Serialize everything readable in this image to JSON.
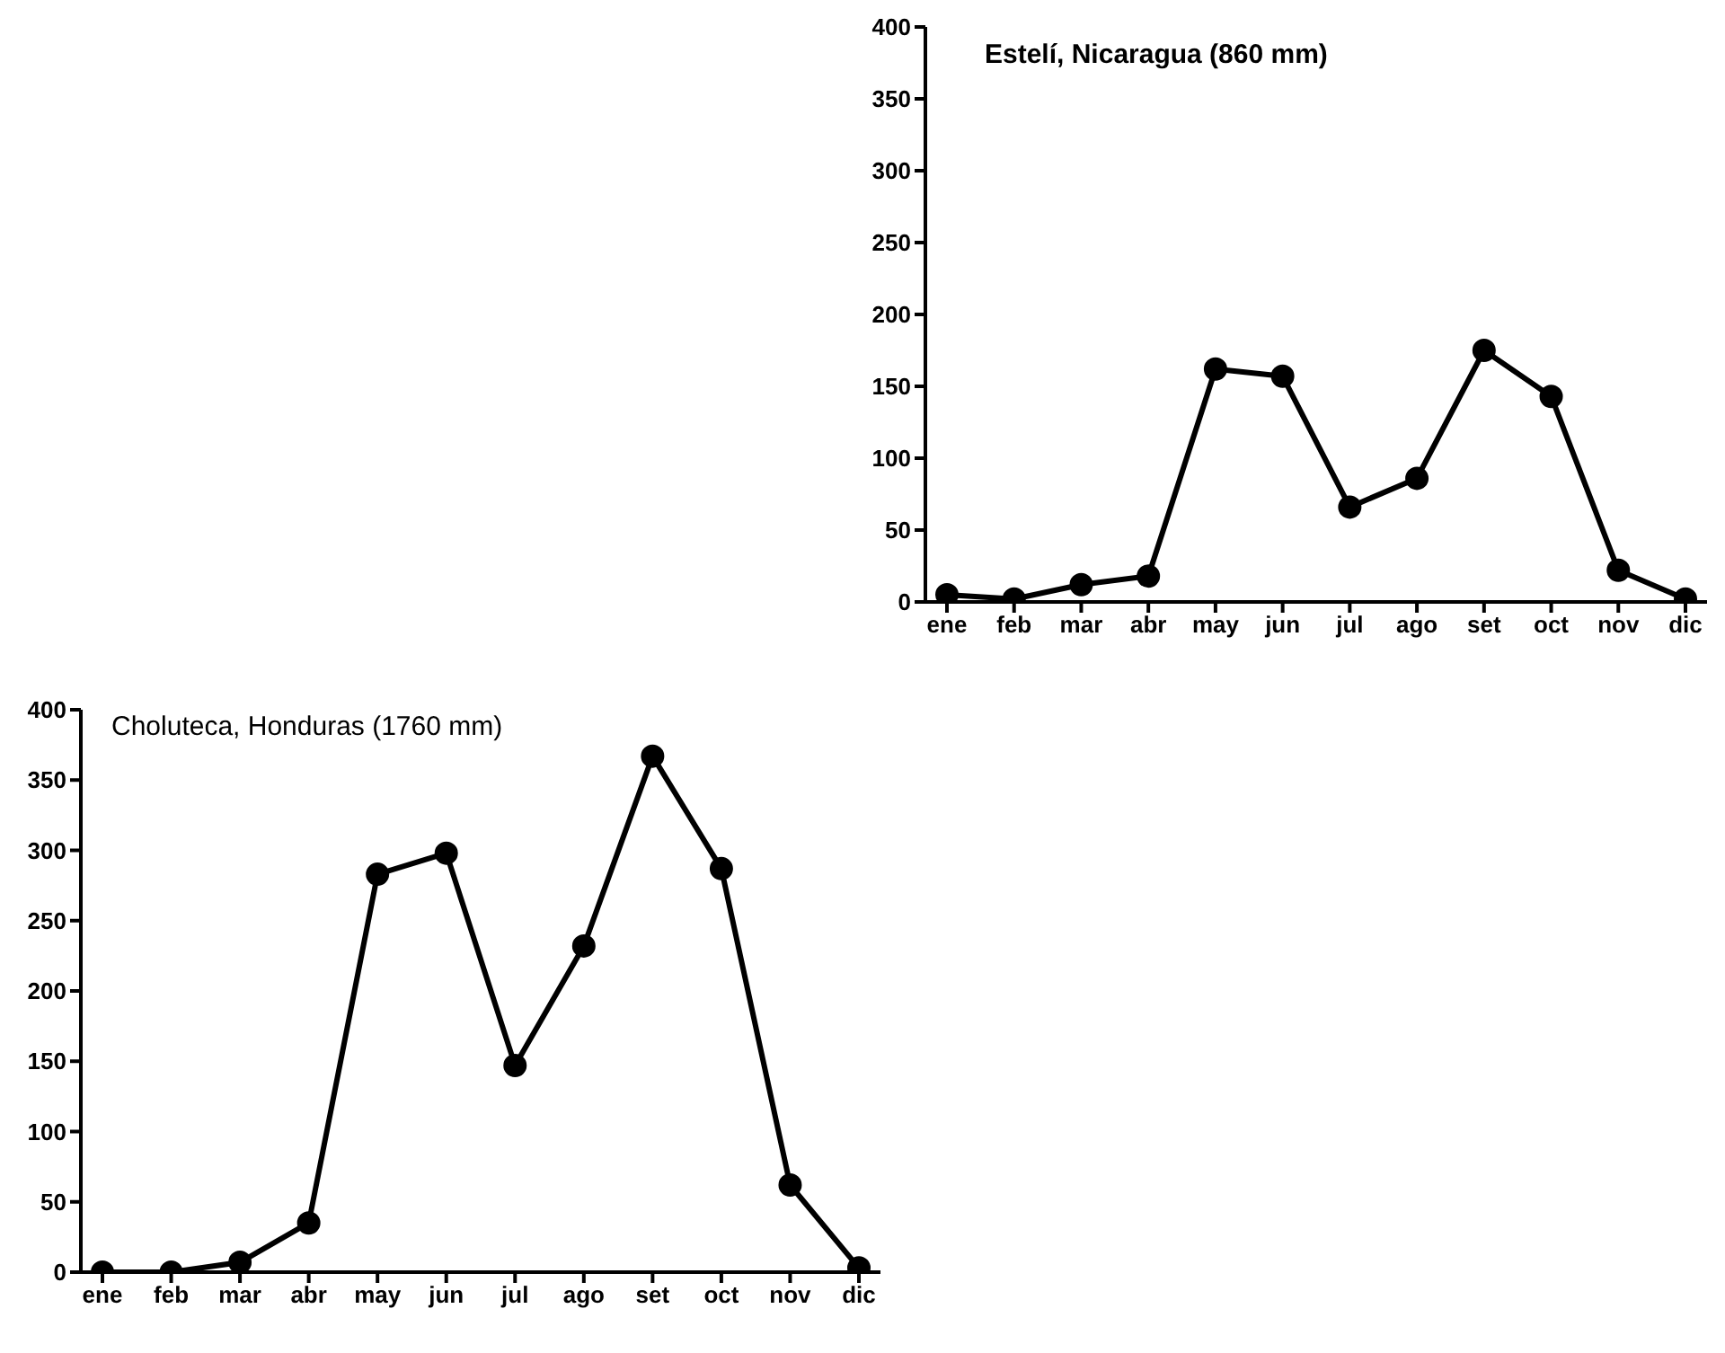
{
  "chart_data": [
    {
      "type": "line",
      "title": "Estelí, Nicaragua (860 mm)",
      "categories": [
        "ene",
        "feb",
        "mar",
        "abr",
        "may",
        "jun",
        "jul",
        "ago",
        "set",
        "oct",
        "nov",
        "dic"
      ],
      "series": [
        {
          "color": "#000000",
          "values": [
            5,
            2,
            12,
            18,
            162,
            157,
            66,
            86,
            175,
            143,
            22,
            2
          ]
        }
      ],
      "ylim": [
        0,
        400
      ],
      "yticks": [
        0,
        50,
        100,
        150,
        200,
        250,
        300,
        350,
        400
      ],
      "grid": false,
      "legend": false,
      "marker": "circle",
      "line_style": "solid"
    },
    {
      "type": "line",
      "title": "Choluteca, Honduras (1760 mm)",
      "categories": [
        "ene",
        "feb",
        "mar",
        "abr",
        "may",
        "jun",
        "jul",
        "ago",
        "set",
        "oct",
        "nov",
        "dic"
      ],
      "series": [
        {
          "color": "#000000",
          "values": [
            0,
            0,
            7,
            35,
            283,
            298,
            147,
            232,
            367,
            287,
            62,
            3
          ]
        }
      ],
      "ylim": [
        0,
        400
      ],
      "yticks": [
        0,
        50,
        100,
        150,
        200,
        250,
        300,
        350,
        400
      ],
      "grid": false,
      "legend": false,
      "marker": "circle",
      "line_style": "solid"
    }
  ]
}
